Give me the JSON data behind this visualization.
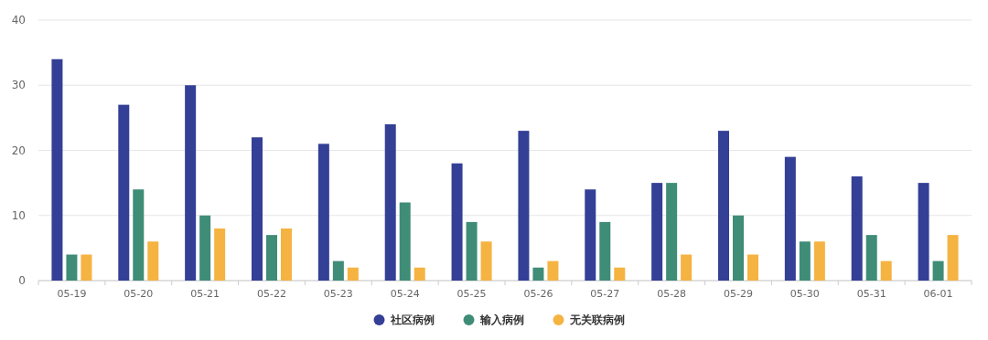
{
  "chart_data": {
    "type": "bar",
    "categories": [
      "05-19",
      "05-20",
      "05-21",
      "05-22",
      "05-23",
      "05-24",
      "05-25",
      "05-26",
      "05-27",
      "05-28",
      "05-29",
      "05-30",
      "05-31",
      "06-01"
    ],
    "series": [
      {
        "name": "社区病例",
        "color": "#343f96",
        "values": [
          34,
          27,
          30,
          22,
          21,
          24,
          18,
          23,
          14,
          15,
          23,
          19,
          16,
          15
        ]
      },
      {
        "name": "输入病例",
        "color": "#3f8c77",
        "values": [
          4,
          14,
          10,
          7,
          3,
          12,
          9,
          2,
          9,
          15,
          10,
          6,
          7,
          3
        ]
      },
      {
        "name": "无关联病例",
        "color": "#f5b342",
        "values": [
          4,
          6,
          8,
          8,
          2,
          2,
          6,
          3,
          2,
          4,
          4,
          6,
          3,
          7
        ]
      }
    ],
    "ylim": [
      0,
      40
    ],
    "yticks": [
      0,
      10,
      20,
      30,
      40
    ],
    "grid": "y",
    "legend": "bottom"
  }
}
